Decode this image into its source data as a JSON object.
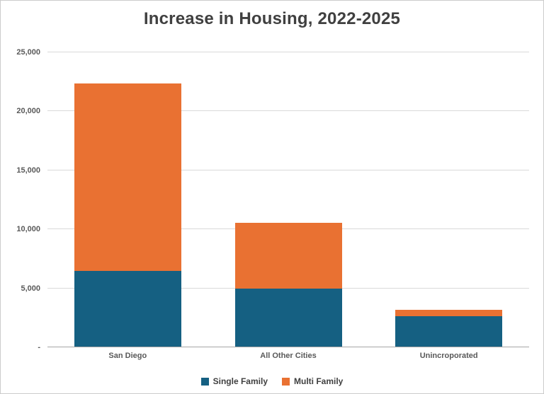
{
  "chart": {
    "title": "Increase in Housing, 2022-2025"
  },
  "chart_data": {
    "type": "bar",
    "stacked": true,
    "title": "Increase in Housing, 2022-2025",
    "categories": [
      "San Diego",
      "All Other Cities",
      "Unincroporated"
    ],
    "series": [
      {
        "name": "Single Family",
        "color": "#156082",
        "values": [
          6400,
          4900,
          2550
        ]
      },
      {
        "name": "Multi Family",
        "color": "#E97132",
        "values": [
          15900,
          5600,
          550
        ]
      }
    ],
    "totals": [
      22300,
      10500,
      3100
    ],
    "xlabel": "",
    "ylabel": "",
    "ylim": [
      0,
      25000
    ],
    "ytick_step": 5000,
    "ytick_labels": [
      "-",
      "5,000",
      "10,000",
      "15,000",
      "20,000",
      "25,000"
    ],
    "grid": true,
    "gridline_color": "#d9d9d9",
    "axis_line_color": "#a6a6a6",
    "legend_position": "bottom"
  }
}
